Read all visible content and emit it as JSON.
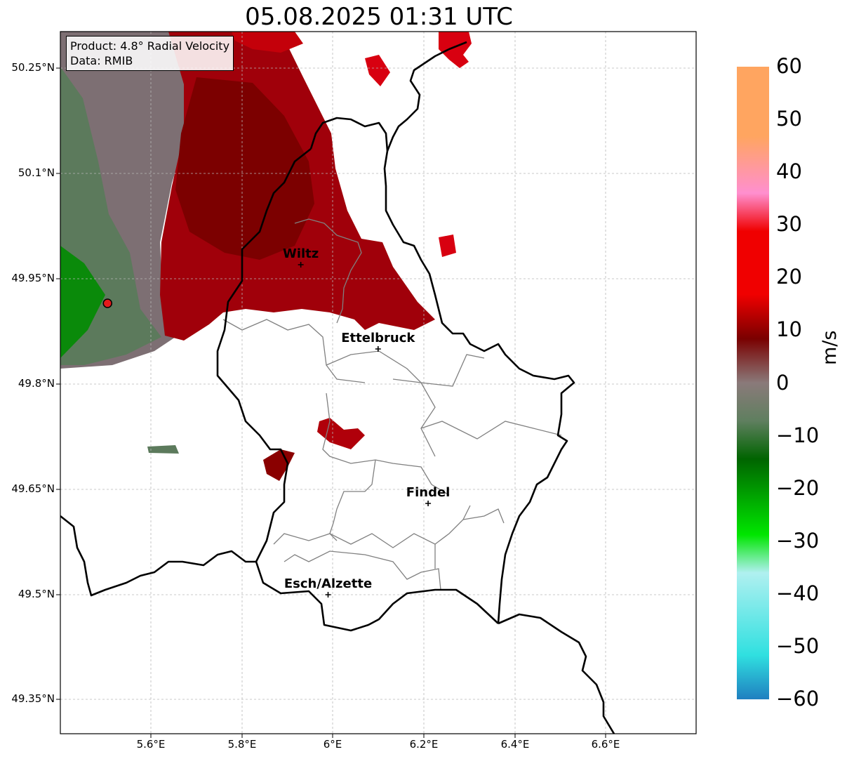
{
  "title": "05.08.2025 01:31 UTC",
  "info": {
    "product": "Product: 4.8° Radial Velocity",
    "source": "Data: RMIB"
  },
  "lat_ticks": [
    "50.25°N",
    "50.1°N",
    "49.95°N",
    "49.8°N",
    "49.65°N",
    "49.5°N",
    "49.35°N"
  ],
  "lon_ticks": [
    "5.6°E",
    "5.8°E",
    "6°E",
    "6.2°E",
    "6.4°E",
    "6.6°E"
  ],
  "cities": [
    {
      "name": "Wiltz",
      "lon": 5.93,
      "lat": 49.97
    },
    {
      "name": "Ettelbruck",
      "lon": 6.1,
      "lat": 49.85
    },
    {
      "name": "Findel",
      "lon": 6.21,
      "lat": 49.63
    },
    {
      "name": "Esch/Alzette",
      "lon": 5.99,
      "lat": 49.5
    }
  ],
  "radar_site": {
    "lon": 5.505,
    "lat": 49.915,
    "color": "#e41a1c"
  },
  "colorbar": {
    "unit": "m/s",
    "min": -60,
    "max": 60,
    "tick_labels": [
      "60",
      "50",
      "40",
      "30",
      "20",
      "10",
      "0",
      "−10",
      "−20",
      "−30",
      "−40",
      "−50",
      "−60"
    ],
    "colors": {
      "high": "#ffa560",
      "pink": "#ff8fcf",
      "red": "#f00000",
      "darkred": "#7a0000",
      "neutral": "#8a7a7a",
      "neutral_green": "#5f7f5f",
      "darkgreen": "#006400",
      "green": "#00e600",
      "lightcyan": "#b0f0f0",
      "cyan": "#30e0e0",
      "blue": "#1f7fc0"
    }
  }
}
